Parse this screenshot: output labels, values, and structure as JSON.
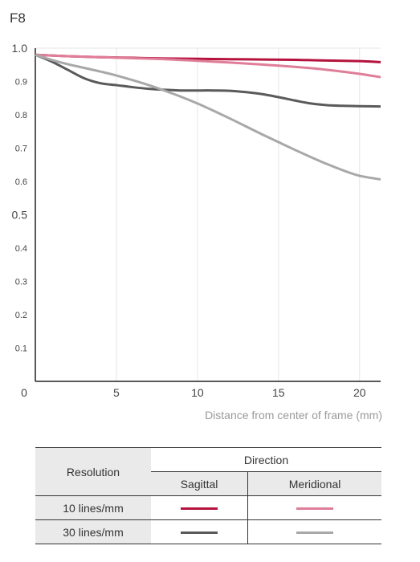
{
  "chart_data": {
    "type": "line",
    "title": "F8",
    "xlabel": "Distance from center of frame (mm)",
    "ylabel": "",
    "xlim": [
      0,
      21.3
    ],
    "ylim": [
      0,
      1.0
    ],
    "x_ticks": [
      {
        "v": 0,
        "label": "0"
      },
      {
        "v": 5,
        "label": "5"
      },
      {
        "v": 10,
        "label": "10"
      },
      {
        "v": 15,
        "label": "15"
      },
      {
        "v": 20,
        "label": "20"
      }
    ],
    "y_ticks": [
      {
        "v": 1.0,
        "label": "1.0",
        "major": true
      },
      {
        "v": 0.9,
        "label": "0.9",
        "major": false
      },
      {
        "v": 0.8,
        "label": "0.8",
        "major": false
      },
      {
        "v": 0.7,
        "label": "0.7",
        "major": false
      },
      {
        "v": 0.6,
        "label": "0.6",
        "major": false
      },
      {
        "v": 0.5,
        "label": "0.5",
        "major": true
      },
      {
        "v": 0.4,
        "label": "0.4",
        "major": false
      },
      {
        "v": 0.3,
        "label": "0.3",
        "major": false
      },
      {
        "v": 0.2,
        "label": "0.2",
        "major": false
      },
      {
        "v": 0.1,
        "label": "0.1",
        "major": false
      }
    ],
    "grid": true,
    "series": [
      {
        "key": "s10",
        "color": "#b5123d",
        "x": [
          0,
          2,
          4,
          6,
          8,
          10,
          12,
          14,
          16,
          18,
          20,
          21.3
        ],
        "y": [
          0.98,
          0.976,
          0.973,
          0.971,
          0.969,
          0.968,
          0.967,
          0.966,
          0.965,
          0.963,
          0.961,
          0.958
        ]
      },
      {
        "key": "m10",
        "color": "#e07d98",
        "x": [
          0,
          2,
          4,
          6,
          8,
          10,
          12,
          14,
          16,
          18,
          20,
          21.3
        ],
        "y": [
          0.98,
          0.976,
          0.973,
          0.97,
          0.967,
          0.962,
          0.957,
          0.951,
          0.944,
          0.935,
          0.923,
          0.913
        ]
      },
      {
        "key": "s30",
        "color": "#5a5a5a",
        "x": [
          0,
          1,
          2,
          3,
          4,
          5,
          6,
          7,
          8,
          9,
          10,
          11,
          12,
          13,
          14,
          15,
          16,
          17,
          18,
          19,
          20,
          21.3
        ],
        "y": [
          0.98,
          0.96,
          0.935,
          0.91,
          0.895,
          0.889,
          0.883,
          0.878,
          0.875,
          0.873,
          0.873,
          0.873,
          0.872,
          0.868,
          0.862,
          0.853,
          0.843,
          0.834,
          0.829,
          0.827,
          0.826,
          0.825
        ]
      },
      {
        "key": "m30",
        "color": "#a8a8a8",
        "x": [
          0,
          1,
          2,
          3,
          4,
          5,
          6,
          7,
          8,
          9,
          10,
          11,
          12,
          13,
          14,
          15,
          16,
          17,
          18,
          19,
          20,
          21.3
        ],
        "y": [
          0.98,
          0.965,
          0.952,
          0.941,
          0.93,
          0.918,
          0.904,
          0.889,
          0.872,
          0.854,
          0.834,
          0.812,
          0.789,
          0.765,
          0.741,
          0.718,
          0.695,
          0.673,
          0.652,
          0.633,
          0.617,
          0.606
        ]
      }
    ]
  },
  "legend": {
    "resolution_header": "Resolution",
    "direction_header": "Direction",
    "sagittal": "Sagittal",
    "meridional": "Meridional",
    "row_10": "10 lines/mm",
    "row_30": "30 lines/mm"
  }
}
